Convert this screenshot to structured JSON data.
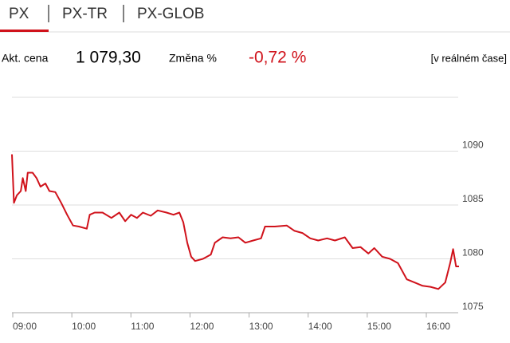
{
  "tabs": [
    "PX",
    "PX-TR",
    "PX-GLOB"
  ],
  "stats": {
    "price_label": "Akt. cena",
    "price": "1 079,30",
    "change_label": "Změna %",
    "change": "-0,72 %",
    "note": "[v reálném čase]"
  },
  "chart_data": {
    "type": "line",
    "color": "#d0121b",
    "grid": true,
    "x": [
      "09:00",
      "09:02",
      "09:05",
      "09:09",
      "09:11",
      "09:14",
      "09:16",
      "09:21",
      "09:25",
      "09:29",
      "09:34",
      "09:38",
      "09:44",
      "09:50",
      "09:56",
      "10:02",
      "10:08",
      "10:16",
      "10:19",
      "10:24",
      "10:32",
      "10:41",
      "10:49",
      "10:55",
      "11:01",
      "11:07",
      "11:13",
      "11:21",
      "11:28",
      "11:37",
      "11:44",
      "11:50",
      "11:54",
      "11:58",
      "12:02",
      "12:06",
      "12:14",
      "12:22",
      "12:26",
      "12:34",
      "12:42",
      "12:50",
      "12:57",
      "13:05",
      "13:13",
      "13:17",
      "13:27",
      "13:39",
      "13:47",
      "13:55",
      "14:03",
      "14:11",
      "14:20",
      "14:28",
      "14:38",
      "14:46",
      "14:54",
      "15:02",
      "15:08",
      "15:16",
      "15:24",
      "15:32",
      "15:41",
      "15:49",
      "15:57",
      "16:05",
      "16:13",
      "16:20",
      "16:25",
      "16:28",
      "16:31",
      "16:34"
    ],
    "values": [
      1089.7,
      1085.2,
      1085.9,
      1086.3,
      1087.5,
      1086.3,
      1088.0,
      1088.0,
      1087.5,
      1086.7,
      1087.0,
      1086.3,
      1086.2,
      1085.2,
      1084.1,
      1083.1,
      1083.0,
      1082.8,
      1084.1,
      1084.3,
      1084.3,
      1083.8,
      1084.3,
      1083.5,
      1084.1,
      1083.8,
      1084.3,
      1084.0,
      1084.5,
      1084.3,
      1084.1,
      1084.3,
      1083.4,
      1081.5,
      1080.2,
      1079.8,
      1080.0,
      1080.4,
      1081.5,
      1082.0,
      1081.9,
      1082.0,
      1081.5,
      1081.7,
      1081.9,
      1083.0,
      1083.0,
      1083.1,
      1082.6,
      1082.4,
      1081.9,
      1081.7,
      1081.9,
      1081.7,
      1082.0,
      1081.0,
      1081.1,
      1080.5,
      1081.0,
      1080.2,
      1080.0,
      1079.6,
      1078.1,
      1077.8,
      1077.5,
      1077.4,
      1077.2,
      1077.8,
      1079.6,
      1080.9,
      1079.3,
      1079.3
    ],
    "xlim": [
      "09:00",
      "16:34"
    ],
    "xticks": [
      "09:00",
      "10:00",
      "11:00",
      "12:00",
      "13:00",
      "14:00",
      "15:00",
      "16:00"
    ],
    "ylim": [
      1075,
      1095
    ],
    "yticks": [
      1075,
      1080,
      1085,
      1090
    ]
  }
}
